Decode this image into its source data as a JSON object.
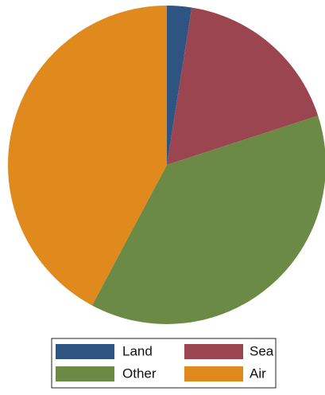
{
  "chart_data": {
    "type": "pie",
    "categories": [
      "Land",
      "Sea",
      "Other",
      "Air"
    ],
    "values": [
      2.5,
      17.5,
      37.8,
      42.2
    ],
    "colors": [
      "#2e5582",
      "#9a4550",
      "#6a8a45",
      "#e08a1e"
    ],
    "legend": "bottom"
  }
}
